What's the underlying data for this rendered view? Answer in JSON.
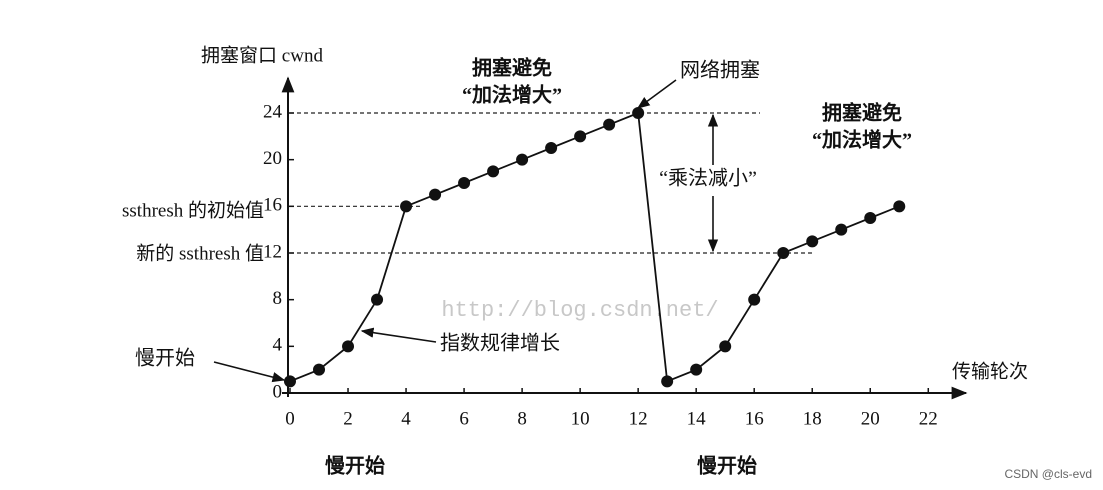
{
  "chart_data": {
    "type": "line",
    "y_axis_label": "拥塞窗口 cwnd",
    "x_axis_label": "传输轮次",
    "x": [
      0,
      1,
      2,
      3,
      4,
      5,
      6,
      7,
      8,
      9,
      10,
      11,
      12,
      13,
      14,
      15,
      16,
      17,
      18,
      19,
      20,
      21
    ],
    "series": [
      {
        "color": "#111111",
        "values": [
          1,
          2,
          4,
          8,
          16,
          17,
          18,
          19,
          20,
          21,
          22,
          23,
          24,
          1,
          2,
          4,
          8,
          12,
          13,
          14,
          15,
          16
        ]
      }
    ],
    "xlim": [
      0,
      23.3
    ],
    "ylim": [
      0,
      27
    ],
    "xticks": [
      0,
      2,
      4,
      6,
      8,
      10,
      12,
      14,
      16,
      18,
      20,
      22
    ],
    "yticks": [
      0,
      4,
      8,
      12,
      16,
      20,
      24
    ],
    "reference_lines": [
      24,
      16,
      12
    ],
    "annotations": {
      "slow_start_left": "慢开始",
      "exponential": "指数规律增长",
      "initial_ssthresh": "ssthresh 的初始值",
      "new_ssthresh": "新的 ssthresh 值",
      "ca1_title": "拥塞避免",
      "ca1_sub": "“加法增大”",
      "congestion": "网络拥塞",
      "mult_decrease": "“乘法减小”",
      "ca2_title": "拥塞避免",
      "ca2_sub": "“加法增大”",
      "slow_start_bottom1": "慢开始",
      "slow_start_bottom2": "慢开始",
      "watermark": "http://blog.csdn.net/",
      "credit": "CSDN @cls-evd"
    }
  }
}
